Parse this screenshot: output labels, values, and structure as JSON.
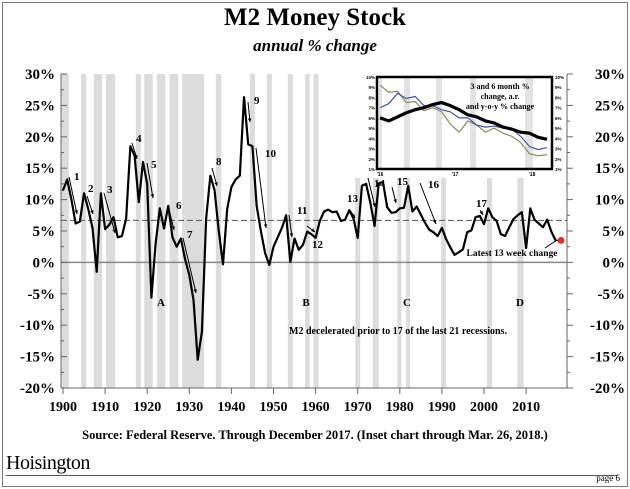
{
  "chart_data": {
    "type": "line",
    "title": "M2 Money Stock",
    "subtitle": "annual % change",
    "ylim": [
      -20,
      30
    ],
    "xlim": [
      1900,
      2018
    ],
    "y_ticks": [
      "30%",
      "25%",
      "20%",
      "15%",
      "10%",
      "5%",
      "0%",
      "-5%",
      "-10%",
      "-15%",
      "-20%"
    ],
    "x_ticks": [
      "1900",
      "1910",
      "1920",
      "1930",
      "1940",
      "1950",
      "1960",
      "1970",
      "1980",
      "1990",
      "2000",
      "2010"
    ],
    "grid": false,
    "reference_line_dashed": 6.7,
    "series": [
      {
        "color": "#000000",
        "x": [
          1900,
          1901,
          1902,
          1903,
          1904,
          1905,
          1906,
          1907,
          1908,
          1909,
          1910,
          1911,
          1912,
          1913,
          1914,
          1915,
          1916,
          1917,
          1918,
          1919,
          1920,
          1921,
          1922,
          1923,
          1924,
          1925,
          1926,
          1927,
          1928,
          1929,
          1930,
          1931,
          1932,
          1933,
          1934,
          1935,
          1936,
          1937,
          1938,
          1939,
          1940,
          1941,
          1942,
          1943,
          1944,
          1945,
          1946,
          1947,
          1948,
          1949,
          1950,
          1951,
          1952,
          1953,
          1954,
          1955,
          1956,
          1957,
          1958,
          1959,
          1960,
          1961,
          1962,
          1963,
          1964,
          1965,
          1966,
          1967,
          1968,
          1969,
          1970,
          1971,
          1972,
          1973,
          1974,
          1975,
          1976,
          1977,
          1978,
          1979,
          1980,
          1981,
          1982,
          1983,
          1984,
          1985,
          1986,
          1987,
          1988,
          1989,
          1990,
          1991,
          1992,
          1993,
          1994,
          1995,
          1996,
          1997,
          1998,
          1999,
          2000,
          2001,
          2002,
          2003,
          2004,
          2005,
          2006,
          2007,
          2008,
          2009,
          2010,
          2011,
          2012,
          2013,
          2014,
          2015,
          2016,
          2017
        ],
        "values": [
          11.5,
          13.2,
          10.0,
          6.2,
          6.5,
          11.0,
          8.5,
          5.5,
          -1.5,
          11.0,
          5.3,
          6.0,
          7.2,
          4.0,
          4.2,
          7.0,
          18.5,
          17.0,
          9.6,
          16.0,
          12.5,
          -5.6,
          3.0,
          8.6,
          5.4,
          9.0,
          4.0,
          2.5,
          3.8,
          0.5,
          -2.0,
          -6.0,
          -15.5,
          -11.0,
          7.0,
          13.8,
          11.5,
          5.0,
          -0.3,
          8.5,
          12.0,
          13.2,
          13.8,
          26.3,
          18.8,
          18.5,
          9.0,
          5.0,
          1.5,
          -0.4,
          2.5,
          4.0,
          5.5,
          7.5,
          0.1,
          3.8,
          2.0,
          2.8,
          4.9,
          4.5,
          3.9,
          6.6,
          8.1,
          8.4,
          8.0,
          8.1,
          6.6,
          6.8,
          8.3,
          7.0,
          3.9,
          12.2,
          12.5,
          9.5,
          5.8,
          12.6,
          12.8,
          8.8,
          7.9,
          8.0,
          8.6,
          8.7,
          12.2,
          8.1,
          8.9,
          7.6,
          6.3,
          5.2,
          4.8,
          4.2,
          5.5,
          3.7,
          2.4,
          1.2,
          1.6,
          2.1,
          4.8,
          5.1,
          7.2,
          7.4,
          6.1,
          8.6,
          7.2,
          6.6,
          4.5,
          4.2,
          5.6,
          6.9,
          7.5,
          8.0,
          2.3,
          8.6,
          6.8,
          6.2,
          5.6,
          6.8,
          4.9,
          3.5
        ]
      }
    ],
    "latest_point": {
      "label": "Latest 13 week change",
      "value": 3.5,
      "color": "#e53030"
    },
    "recession_shading": [
      [
        1899.6,
        1901.4
      ],
      [
        1904.3,
        1905.5
      ],
      [
        1907.3,
        1909.3
      ],
      [
        1910.2,
        1912.4
      ],
      [
        1917.3,
        1918.5
      ],
      [
        1919.3,
        1921.3
      ],
      [
        1922.3,
        1924.3
      ],
      [
        1925.3,
        1927.4
      ],
      [
        1928.3,
        1933.5
      ],
      [
        1936.3,
        1937.6
      ],
      [
        1944.4,
        1945.6
      ],
      [
        1948.4,
        1949.6
      ],
      [
        1953.4,
        1954.6
      ],
      [
        1957.5,
        1958.6
      ],
      [
        1959.5,
        1960.7
      ],
      [
        1969.4,
        1970.6
      ],
      [
        1973.6,
        1975.0
      ],
      [
        1979.4,
        1980.4
      ],
      [
        1981.5,
        1982.4
      ],
      [
        1989.8,
        1991.0
      ],
      [
        2000.7,
        2001.9
      ],
      [
        2007.9,
        2009.4
      ]
    ],
    "annotations": {
      "numbers": [
        "1",
        "2",
        "3",
        "4",
        "5",
        "6",
        "7",
        "8",
        "9",
        "10",
        "11",
        "12",
        "13",
        "14",
        "15",
        "16",
        "17"
      ],
      "letters": [
        "A",
        "B",
        "C",
        "D"
      ],
      "note": "M2 decelerated prior to 17 of the last 21 recessions."
    },
    "inset": {
      "title": "3 and 6 month % change, a.r. and y-o-y % change",
      "title_lines": [
        "3 and 6 month %",
        "change, a.r.",
        "and y-o-y % change"
      ],
      "ylim": [
        1,
        10
      ],
      "y_ticks": [
        "10%",
        "9%",
        "8%",
        "7%",
        "6%",
        "5%",
        "4%",
        "3%",
        "2%",
        "1%"
      ],
      "x_ticks": [
        "'16",
        "'17",
        "'18"
      ],
      "series": [
        {
          "color": "#000000",
          "values": [
            6.0,
            5.7,
            6.1,
            6.5,
            6.8,
            7.0,
            7.3,
            7.5,
            7.2,
            6.8,
            6.3,
            6.1,
            5.7,
            5.5,
            5.1,
            4.9,
            4.6,
            4.5,
            4.1,
            3.9
          ]
        },
        {
          "color": "#3a55b0",
          "values": [
            7.0,
            7.4,
            8.4,
            7.9,
            8.1,
            7.2,
            7.2,
            6.8,
            6.6,
            6.0,
            6.0,
            5.3,
            5.1,
            5.2,
            5.0,
            4.9,
            4.2,
            3.2,
            2.9,
            3.1
          ]
        },
        {
          "color": "#8a8a5a",
          "values": [
            9.2,
            8.5,
            8.6,
            7.5,
            7.6,
            6.7,
            7.0,
            6.6,
            5.4,
            4.6,
            5.7,
            5.3,
            4.6,
            5.0,
            4.5,
            4.2,
            3.6,
            2.5,
            2.3,
            2.4
          ]
        }
      ]
    }
  },
  "source": "Source: Federal Reserve.  Through December 2017.  (Inset chart through Mar. 26, 2018.)",
  "logo": "Hoisington",
  "page": "page 6"
}
